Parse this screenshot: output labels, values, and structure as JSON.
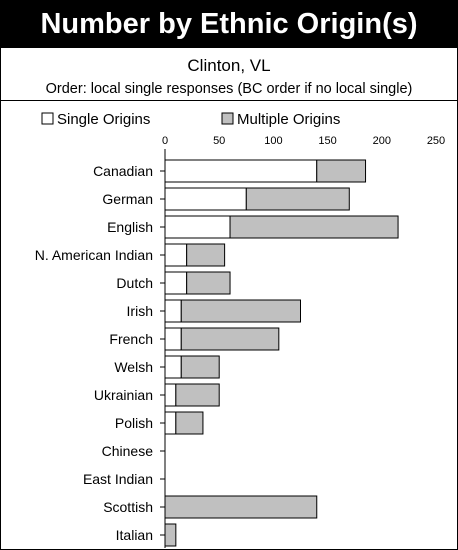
{
  "title": "Number by Ethnic Origin(s)",
  "subtitle": "Clinton, VL",
  "note": "Order: local single responses (BC order if no local single)",
  "colors": {
    "single": "#ffffff",
    "multiple": "#c0c0c0",
    "outline": "#000000",
    "title_bg": "#000000",
    "title_fg": "#ffffff"
  },
  "chart_data": {
    "type": "bar",
    "orientation": "horizontal",
    "stacked": true,
    "xlim": [
      0,
      250
    ],
    "x_ticks": [
      "0",
      "50",
      "100",
      "150",
      "200",
      "250"
    ],
    "grid": false,
    "legend_position": "top",
    "categories": [
      "Canadian",
      "German",
      "English",
      "N. American Indian",
      "Dutch",
      "Irish",
      "French",
      "Welsh",
      "Ukrainian",
      "Polish",
      "Chinese",
      "East Indian",
      "Scottish",
      "Italian"
    ],
    "series": [
      {
        "name": "Single Origins",
        "values": [
          140,
          75,
          60,
          20,
          20,
          15,
          15,
          15,
          10,
          10,
          0,
          0,
          0,
          0
        ]
      },
      {
        "name": "Multiple Origins",
        "values": [
          45,
          95,
          155,
          35,
          40,
          110,
          90,
          35,
          40,
          25,
          0,
          0,
          140,
          10
        ]
      }
    ]
  }
}
